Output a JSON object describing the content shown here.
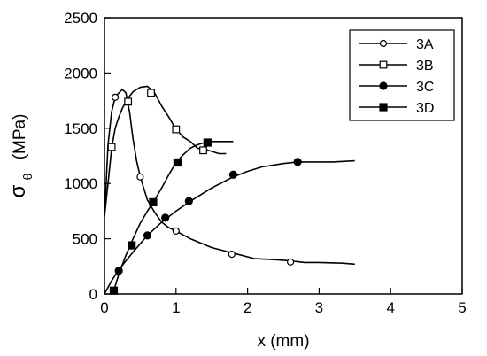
{
  "chart_data": {
    "type": "line",
    "title": "",
    "xlabel": "x (mm)",
    "ylabel_symbol": "σ",
    "ylabel_subscript": "θ",
    "ylabel_unit": "(MPa)",
    "xlim": [
      0,
      5
    ],
    "ylim": [
      0,
      2500
    ],
    "xticks": [
      0,
      1,
      2,
      3,
      4,
      5
    ],
    "yticks": [
      0,
      500,
      1000,
      1500,
      2000,
      2500
    ],
    "grid": false,
    "legend_position": "top-right",
    "series": [
      {
        "name": "3A",
        "marker": "open-circle",
        "color": "#000000",
        "x": [
          0.0,
          0.05,
          0.1,
          0.15,
          0.2,
          0.25,
          0.3,
          0.35,
          0.4,
          0.45,
          0.5,
          0.6,
          0.7,
          0.8,
          0.9,
          1.0,
          1.2,
          1.5,
          1.8,
          2.1,
          2.4,
          2.6,
          2.8,
          3.0,
          3.3,
          3.5
        ],
        "y": [
          700,
          1350,
          1650,
          1780,
          1820,
          1850,
          1820,
          1650,
          1400,
          1200,
          1060,
          850,
          740,
          650,
          600,
          570,
          500,
          420,
          370,
          320,
          310,
          300,
          285,
          285,
          280,
          270
        ],
        "markers": [
          [
            0.15,
            1780
          ],
          [
            0.5,
            1060
          ],
          [
            1.0,
            570
          ],
          [
            1.78,
            360
          ],
          [
            2.6,
            290
          ]
        ]
      },
      {
        "name": "3B",
        "marker": "open-square",
        "color": "#000000",
        "x": [
          0.0,
          0.05,
          0.1,
          0.15,
          0.2,
          0.25,
          0.3,
          0.35,
          0.4,
          0.5,
          0.6,
          0.7,
          0.8,
          0.9,
          1.0,
          1.1,
          1.2,
          1.3,
          1.4,
          1.5,
          1.6,
          1.7
        ],
        "y": [
          700,
          1000,
          1320,
          1500,
          1600,
          1680,
          1740,
          1790,
          1830,
          1870,
          1880,
          1820,
          1700,
          1600,
          1490,
          1420,
          1380,
          1320,
          1310,
          1290,
          1270,
          1270
        ],
        "markers": [
          [
            0.1,
            1330
          ],
          [
            0.33,
            1740
          ],
          [
            0.65,
            1820
          ],
          [
            1.0,
            1490
          ],
          [
            1.38,
            1300
          ]
        ]
      },
      {
        "name": "3C",
        "marker": "filled-circle",
        "color": "#000000",
        "x": [
          0.0,
          0.1,
          0.2,
          0.4,
          0.6,
          0.8,
          1.0,
          1.2,
          1.5,
          1.8,
          2.0,
          2.2,
          2.5,
          2.7,
          3.0,
          3.2,
          3.5
        ],
        "y": [
          0,
          120,
          220,
          380,
          530,
          650,
          750,
          840,
          960,
          1060,
          1110,
          1150,
          1180,
          1195,
          1195,
          1195,
          1205
        ],
        "markers": [
          [
            0.2,
            210
          ],
          [
            0.6,
            530
          ],
          [
            0.85,
            690
          ],
          [
            1.18,
            840
          ],
          [
            1.8,
            1080
          ],
          [
            2.7,
            1195
          ]
        ]
      },
      {
        "name": "3D",
        "marker": "filled-square",
        "color": "#000000",
        "x": [
          0.13,
          0.2,
          0.3,
          0.4,
          0.5,
          0.6,
          0.7,
          0.8,
          0.9,
          1.0,
          1.1,
          1.2,
          1.3,
          1.4,
          1.5,
          1.6,
          1.7,
          1.8
        ],
        "y": [
          30,
          180,
          350,
          500,
          640,
          750,
          850,
          960,
          1080,
          1190,
          1260,
          1320,
          1350,
          1370,
          1380,
          1380,
          1380,
          1380
        ],
        "markers": [
          [
            0.13,
            30
          ],
          [
            0.38,
            440
          ],
          [
            0.68,
            830
          ],
          [
            1.02,
            1190
          ],
          [
            1.44,
            1370
          ]
        ]
      }
    ]
  }
}
